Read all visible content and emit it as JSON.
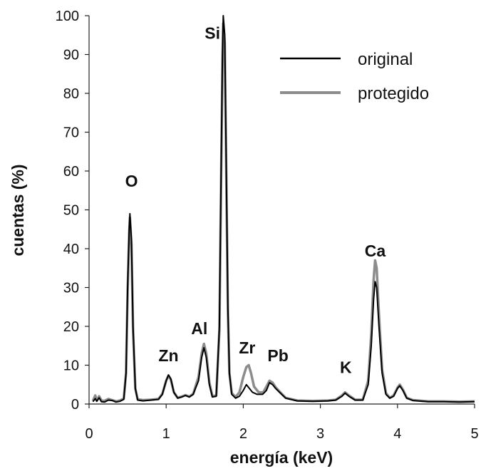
{
  "chart_data": {
    "type": "line",
    "title": "",
    "xlabel": "energía (keV)",
    "ylabel": "cuentas (%)",
    "xlim": [
      0,
      5
    ],
    "ylim": [
      0,
      100
    ],
    "x_ticks": [
      0,
      1,
      2,
      3,
      4,
      5
    ],
    "y_ticks": [
      0,
      10,
      20,
      30,
      40,
      50,
      60,
      70,
      80,
      90,
      100
    ],
    "grid": false,
    "legend_position": "top-right",
    "series": [
      {
        "name": "original",
        "color": "#000000",
        "points": [
          [
            0.05,
            0.6
          ],
          [
            0.08,
            1.4
          ],
          [
            0.1,
            0.7
          ],
          [
            0.13,
            1.6
          ],
          [
            0.16,
            0.6
          ],
          [
            0.2,
            0.5
          ],
          [
            0.25,
            1.0
          ],
          [
            0.3,
            0.9
          ],
          [
            0.35,
            0.5
          ],
          [
            0.4,
            0.7
          ],
          [
            0.45,
            1.2
          ],
          [
            0.48,
            8
          ],
          [
            0.5,
            30
          ],
          [
            0.52,
            45
          ],
          [
            0.53,
            49
          ],
          [
            0.55,
            42
          ],
          [
            0.57,
            20
          ],
          [
            0.6,
            4
          ],
          [
            0.63,
            1.0
          ],
          [
            0.7,
            0.8
          ],
          [
            0.8,
            1.0
          ],
          [
            0.9,
            1.2
          ],
          [
            0.95,
            2.5
          ],
          [
            1.0,
            6
          ],
          [
            1.03,
            7.5
          ],
          [
            1.06,
            6.5
          ],
          [
            1.1,
            3
          ],
          [
            1.15,
            1.5
          ],
          [
            1.2,
            1.8
          ],
          [
            1.25,
            2.2
          ],
          [
            1.3,
            1.8
          ],
          [
            1.35,
            2.5
          ],
          [
            1.42,
            6
          ],
          [
            1.46,
            12
          ],
          [
            1.49,
            14.5
          ],
          [
            1.52,
            12
          ],
          [
            1.56,
            5
          ],
          [
            1.6,
            1.8
          ],
          [
            1.65,
            2.0
          ],
          [
            1.69,
            20
          ],
          [
            1.71,
            55
          ],
          [
            1.73,
            90
          ],
          [
            1.74,
            100
          ],
          [
            1.76,
            95
          ],
          [
            1.78,
            60
          ],
          [
            1.8,
            25
          ],
          [
            1.82,
            8
          ],
          [
            1.85,
            2.5
          ],
          [
            1.9,
            1.5
          ],
          [
            1.95,
            2.0
          ],
          [
            2.0,
            3.5
          ],
          [
            2.04,
            5
          ],
          [
            2.08,
            4
          ],
          [
            2.12,
            3
          ],
          [
            2.18,
            2.5
          ],
          [
            2.25,
            2.5
          ],
          [
            2.3,
            3.5
          ],
          [
            2.34,
            5.5
          ],
          [
            2.38,
            5
          ],
          [
            2.42,
            4
          ],
          [
            2.47,
            3
          ],
          [
            2.55,
            1.5
          ],
          [
            2.7,
            0.8
          ],
          [
            2.9,
            0.7
          ],
          [
            3.1,
            0.8
          ],
          [
            3.2,
            1.0
          ],
          [
            3.28,
            2.0
          ],
          [
            3.32,
            2.8
          ],
          [
            3.37,
            2.0
          ],
          [
            3.45,
            1.0
          ],
          [
            3.55,
            1.0
          ],
          [
            3.62,
            5
          ],
          [
            3.66,
            15
          ],
          [
            3.69,
            27
          ],
          [
            3.71,
            31.5
          ],
          [
            3.73,
            30
          ],
          [
            3.76,
            20
          ],
          [
            3.8,
            8
          ],
          [
            3.85,
            2.5
          ],
          [
            3.9,
            1.5
          ],
          [
            3.95,
            2.0
          ],
          [
            4.0,
            4
          ],
          [
            4.03,
            4.7
          ],
          [
            4.07,
            3.5
          ],
          [
            4.12,
            1.5
          ],
          [
            4.2,
            0.9
          ],
          [
            4.4,
            0.6
          ],
          [
            4.6,
            0.6
          ],
          [
            4.8,
            0.5
          ],
          [
            5.0,
            0.6
          ]
        ]
      },
      {
        "name": "protegido",
        "color": "#8c8c8c",
        "points": [
          [
            0.05,
            0.8
          ],
          [
            0.08,
            2.2
          ],
          [
            0.1,
            0.9
          ],
          [
            0.13,
            2.0
          ],
          [
            0.16,
            0.9
          ],
          [
            0.2,
            0.8
          ],
          [
            0.25,
            1.3
          ],
          [
            0.3,
            1.0
          ],
          [
            0.35,
            0.7
          ],
          [
            0.4,
            0.9
          ],
          [
            0.45,
            1.4
          ],
          [
            0.48,
            8
          ],
          [
            0.5,
            29
          ],
          [
            0.52,
            44
          ],
          [
            0.53,
            48
          ],
          [
            0.55,
            41
          ],
          [
            0.57,
            19
          ],
          [
            0.6,
            4
          ],
          [
            0.63,
            1.2
          ],
          [
            0.7,
            1.0
          ],
          [
            0.8,
            1.1
          ],
          [
            0.9,
            1.3
          ],
          [
            0.95,
            2.6
          ],
          [
            1.0,
            6
          ],
          [
            1.03,
            7.3
          ],
          [
            1.06,
            6.3
          ],
          [
            1.1,
            3
          ],
          [
            1.15,
            1.6
          ],
          [
            1.2,
            1.9
          ],
          [
            1.25,
            2.3
          ],
          [
            1.3,
            1.9
          ],
          [
            1.35,
            2.6
          ],
          [
            1.42,
            7
          ],
          [
            1.46,
            13
          ],
          [
            1.49,
            15.5
          ],
          [
            1.52,
            13
          ],
          [
            1.56,
            5.5
          ],
          [
            1.6,
            2.0
          ],
          [
            1.65,
            2.2
          ],
          [
            1.69,
            19
          ],
          [
            1.71,
            53
          ],
          [
            1.73,
            88
          ],
          [
            1.74,
            98
          ],
          [
            1.76,
            93
          ],
          [
            1.78,
            58
          ],
          [
            1.8,
            24
          ],
          [
            1.82,
            8
          ],
          [
            1.85,
            2.8
          ],
          [
            1.9,
            1.8
          ],
          [
            1.95,
            3.0
          ],
          [
            2.0,
            7
          ],
          [
            2.04,
            9.5
          ],
          [
            2.07,
            10
          ],
          [
            2.1,
            8
          ],
          [
            2.14,
            4.5
          ],
          [
            2.2,
            3.0
          ],
          [
            2.26,
            3.0
          ],
          [
            2.3,
            4.5
          ],
          [
            2.34,
            6
          ],
          [
            2.38,
            5.5
          ],
          [
            2.42,
            4.3
          ],
          [
            2.47,
            3.2
          ],
          [
            2.55,
            1.6
          ],
          [
            2.7,
            0.9
          ],
          [
            2.9,
            0.8
          ],
          [
            3.1,
            0.9
          ],
          [
            3.2,
            1.1
          ],
          [
            3.28,
            2.2
          ],
          [
            3.32,
            3.0
          ],
          [
            3.37,
            2.2
          ],
          [
            3.45,
            1.1
          ],
          [
            3.55,
            1.1
          ],
          [
            3.62,
            6
          ],
          [
            3.66,
            18
          ],
          [
            3.69,
            32
          ],
          [
            3.71,
            37
          ],
          [
            3.73,
            35
          ],
          [
            3.76,
            23
          ],
          [
            3.8,
            9
          ],
          [
            3.85,
            2.8
          ],
          [
            3.9,
            1.6
          ],
          [
            3.95,
            2.2
          ],
          [
            4.0,
            4.2
          ],
          [
            4.03,
            5.0
          ],
          [
            4.07,
            3.7
          ],
          [
            4.12,
            1.6
          ],
          [
            4.2,
            1.0
          ],
          [
            4.4,
            0.7
          ],
          [
            4.6,
            0.7
          ],
          [
            4.8,
            0.6
          ],
          [
            5.0,
            0.7
          ]
        ]
      }
    ],
    "annotations": [
      {
        "text": "Si",
        "x": 1.6,
        "y": 94
      },
      {
        "text": "O",
        "x": 0.55,
        "y": 56
      },
      {
        "text": "Al",
        "x": 1.43,
        "y": 18
      },
      {
        "text": "Zn",
        "x": 1.03,
        "y": 11
      },
      {
        "text": "Zr",
        "x": 2.05,
        "y": 13
      },
      {
        "text": "Pb",
        "x": 2.45,
        "y": 11
      },
      {
        "text": "K",
        "x": 3.33,
        "y": 8
      },
      {
        "text": "Ca",
        "x": 3.71,
        "y": 38
      }
    ]
  }
}
